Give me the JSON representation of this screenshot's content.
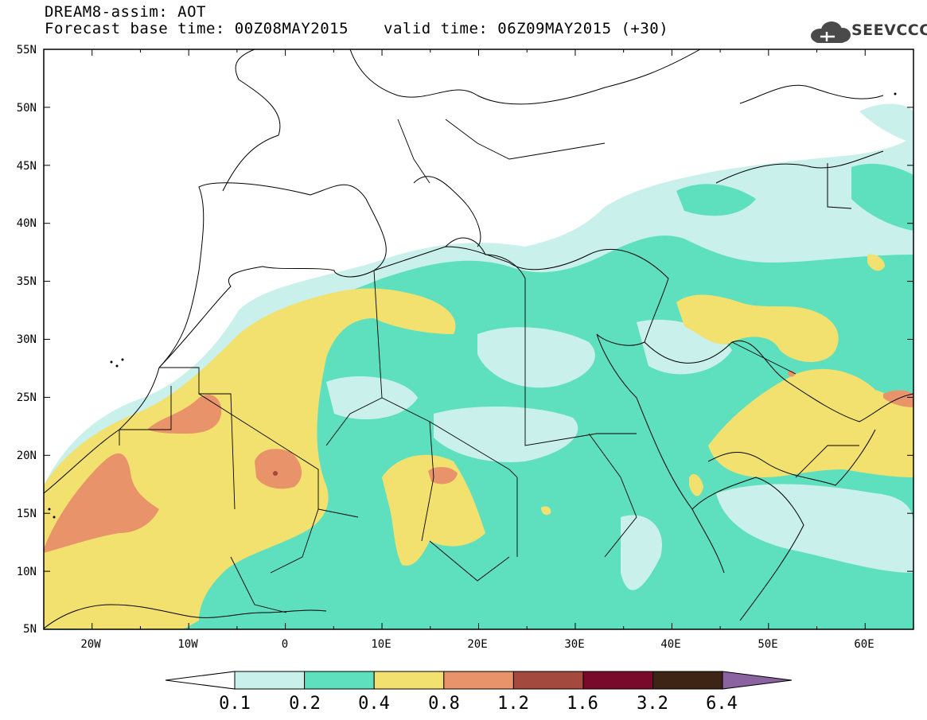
{
  "header": {
    "model_line": "DREAM8-assim: AOT",
    "base_time_line": "Forecast base time: 00Z08MAY2015",
    "valid_time_line": "valid time: 06Z09MAY2015 (+30)",
    "logo_text": "SEEVCCC"
  },
  "map": {
    "lat_labels": [
      "55N",
      "50N",
      "45N",
      "40N",
      "35N",
      "30N",
      "25N",
      "20N",
      "15N",
      "10N",
      "5N"
    ],
    "lon_labels": [
      "20W",
      "10W",
      "0",
      "10E",
      "20E",
      "30E",
      "40E",
      "50E",
      "60E"
    ],
    "lon_range": [
      -25,
      65
    ],
    "lat_range": [
      5,
      55
    ]
  },
  "colorbar": {
    "tick_labels": [
      "0.1",
      "0.2",
      "0.4",
      "0.8",
      "1.2",
      "1.6",
      "3.2",
      "6.4"
    ],
    "colors": [
      "#c9f0ea",
      "#5ee0bf",
      "#f2e06f",
      "#e9936a",
      "#a4493d",
      "#7a0a2c",
      "#3d2414",
      "#8a63a0"
    ]
  }
}
